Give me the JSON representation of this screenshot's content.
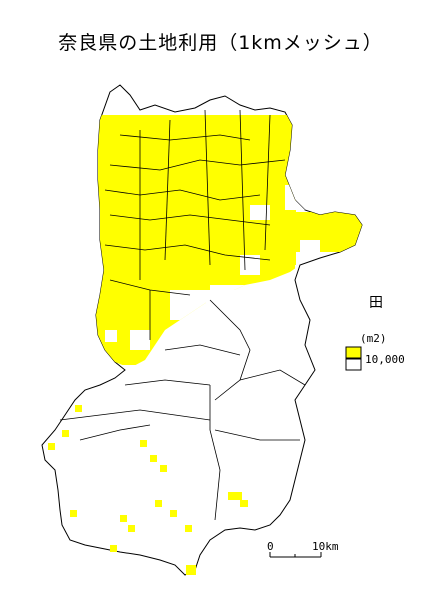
{
  "title": "奈良県の土地利用（1kmメッシュ）",
  "colors": {
    "fill": "#ffff00",
    "empty": "#ffffff",
    "border": "#000000"
  },
  "legend": {
    "icon": "field-kanji-icon",
    "icon_glyph": "田",
    "unit": "(m2)",
    "items": [
      {
        "label": "10,000",
        "color": "#ffff00"
      },
      {
        "label": "",
        "color": "#ffffff"
      }
    ]
  },
  "scale": {
    "start": "0",
    "end": "10km"
  }
}
